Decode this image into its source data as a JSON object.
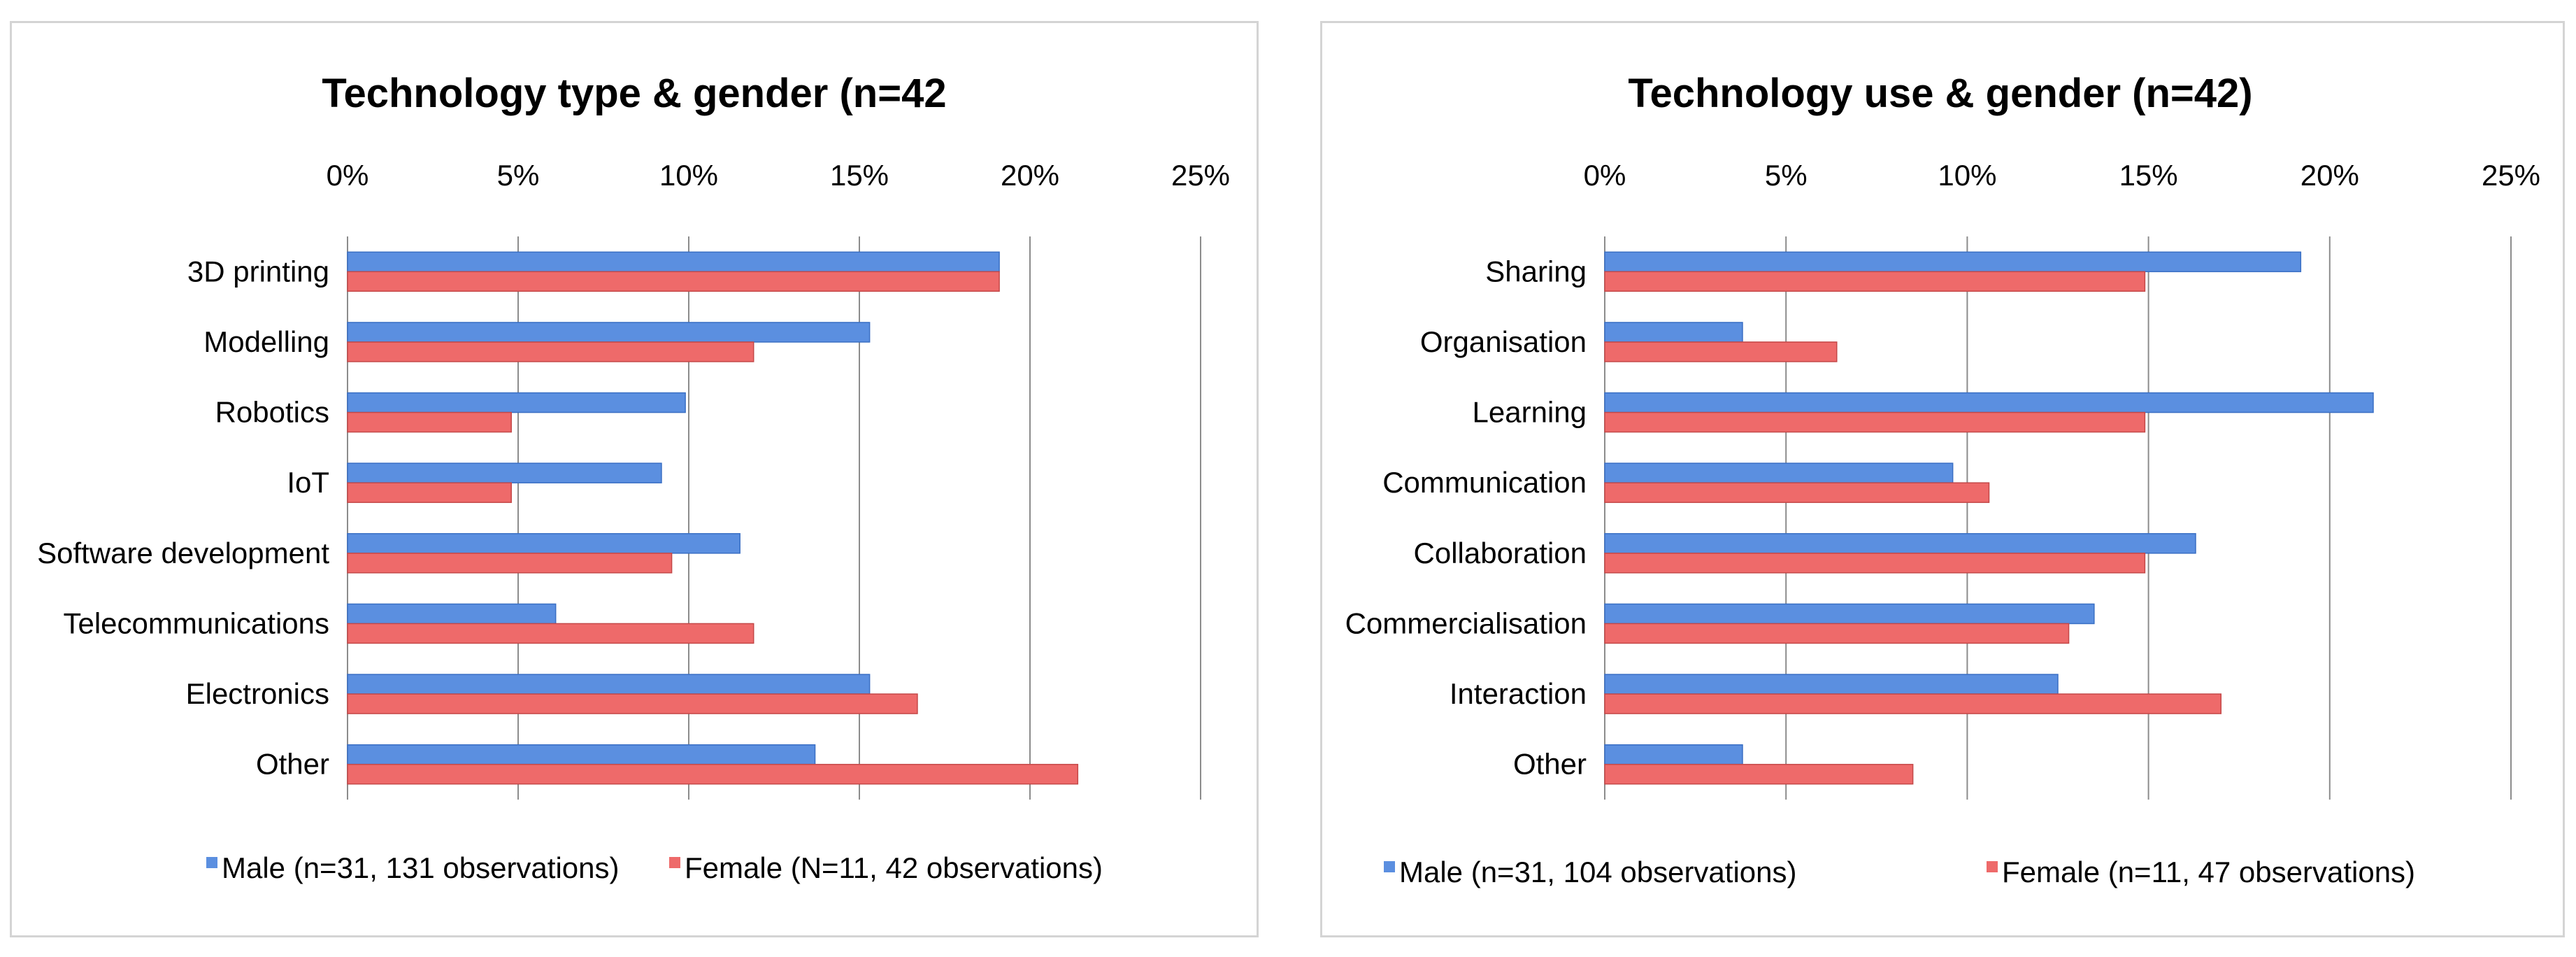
{
  "colors": {
    "male": "#5b8fe0",
    "male_edge": "#3a6fc4",
    "female": "#ee6a6a",
    "female_edge": "#c44848",
    "grid": "#8c8c8c"
  },
  "chart_data": [
    {
      "type": "bar",
      "orientation": "horizontal",
      "title": "Technology type & gender (n=42",
      "xlabel": "",
      "ylabel": "",
      "xlim": [
        0,
        25
      ],
      "tick_labels": [
        "0%",
        "5%",
        "10%",
        "15%",
        "20%",
        "25%"
      ],
      "tick_values": [
        0,
        5,
        10,
        15,
        20,
        25
      ],
      "grid": true,
      "legend_position": "bottom",
      "categories": [
        "3D printing",
        "Modelling",
        "Robotics",
        "IoT",
        "Software development",
        "Telecommunications",
        "Electronics",
        "Other"
      ],
      "series": [
        {
          "name": "Male (n=31, 131 observations)",
          "values": [
            19.1,
            15.3,
            9.9,
            9.2,
            11.5,
            6.1,
            15.3,
            13.7
          ]
        },
        {
          "name": "Female (N=11, 42 observations)",
          "values": [
            19.1,
            11.9,
            4.8,
            4.8,
            9.5,
            11.9,
            16.7,
            21.4
          ]
        }
      ]
    },
    {
      "type": "bar",
      "orientation": "horizontal",
      "title": "Technology use & gender (n=42)",
      "xlabel": "",
      "ylabel": "",
      "xlim": [
        0,
        25
      ],
      "tick_labels": [
        "0%",
        "5%",
        "10%",
        "15%",
        "20%",
        "25%"
      ],
      "tick_values": [
        0,
        5,
        10,
        15,
        20,
        25
      ],
      "grid": true,
      "legend_position": "bottom",
      "categories": [
        "Sharing",
        "Organisation",
        "Learning",
        "Communication",
        "Collaboration",
        "Commercialisation",
        "Interaction",
        "Other"
      ],
      "series": [
        {
          "name": "Male (n=31, 104 observations)",
          "values": [
            19.2,
            3.8,
            21.2,
            9.6,
            16.3,
            13.5,
            12.5,
            3.8
          ]
        },
        {
          "name": "Female (n=11, 47 observations)",
          "values": [
            14.9,
            6.4,
            14.9,
            10.6,
            14.9,
            12.8,
            17.0,
            8.5
          ]
        }
      ]
    }
  ]
}
